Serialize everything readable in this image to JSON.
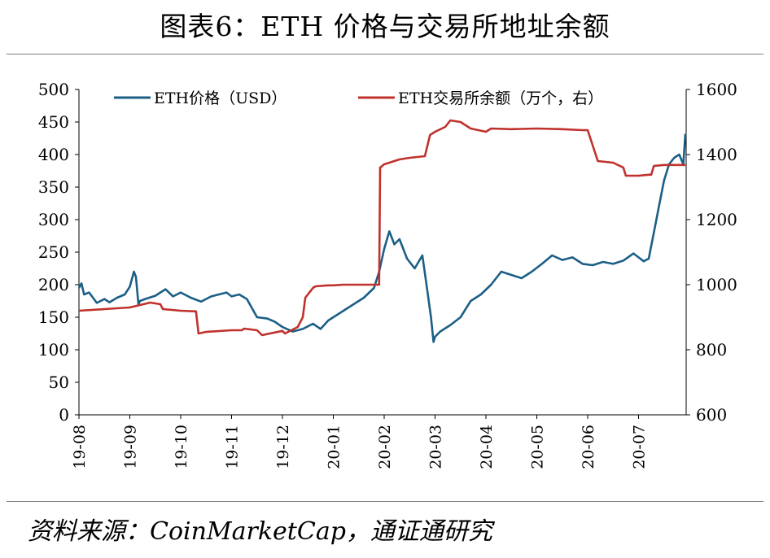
{
  "title": "图表6：ETH 价格与交易所地址余额",
  "source": "资料来源：CoinMarketCap，通证通研究",
  "chart_data": {
    "type": "line",
    "xlabels": [
      "19-08",
      "19-09",
      "19-10",
      "19-11",
      "19-12",
      "20-01",
      "20-02",
      "20-03",
      "20-04",
      "20-05",
      "20-06",
      "20-07"
    ],
    "y_left": {
      "min": 0,
      "max": 500,
      "ticks": [
        0,
        50,
        100,
        150,
        200,
        250,
        300,
        350,
        400,
        450,
        500
      ]
    },
    "y_right": {
      "min": 600,
      "max": 1600,
      "ticks": [
        600,
        800,
        1000,
        1200,
        1400,
        1600
      ]
    },
    "legend": {
      "eth_price": "ETH价格（USD）",
      "exchange_balance": "ETH交易所余额（万个，右）"
    },
    "colors": {
      "eth_price": "#1c5f86",
      "exchange_balance": "#c0312c"
    },
    "series": [
      {
        "name": "ETH价格（USD）",
        "axis": "left",
        "t": [
          0,
          0.05,
          0.1,
          0.2,
          0.35,
          0.5,
          0.6,
          0.75,
          0.9,
          1.0,
          1.08,
          1.12,
          1.17,
          1.2,
          1.3,
          1.5,
          1.7,
          1.85,
          2.0,
          2.2,
          2.4,
          2.6,
          2.75,
          2.9,
          3.0,
          3.15,
          3.3,
          3.5,
          3.7,
          3.85,
          4.0,
          4.2,
          4.4,
          4.6,
          4.75,
          4.9,
          5.0,
          5.2,
          5.4,
          5.6,
          5.8,
          5.9,
          6.0,
          6.1,
          6.2,
          6.3,
          6.45,
          6.6,
          6.75,
          6.85,
          6.92,
          6.97,
          7.0,
          7.1,
          7.3,
          7.5,
          7.7,
          7.9,
          8.1,
          8.3,
          8.5,
          8.7,
          8.9,
          9.1,
          9.3,
          9.5,
          9.7,
          9.9,
          10.1,
          10.3,
          10.5,
          10.7,
          10.9,
          11.0,
          11.1,
          11.2,
          11.3,
          11.4,
          11.5,
          11.6,
          11.7,
          11.8,
          11.88,
          11.92
        ],
        "values": [
          195,
          202,
          185,
          188,
          172,
          178,
          173,
          180,
          185,
          197,
          220,
          212,
          170,
          175,
          178,
          183,
          193,
          182,
          188,
          180,
          174,
          182,
          185,
          188,
          182,
          185,
          178,
          150,
          148,
          143,
          135,
          128,
          132,
          140,
          132,
          145,
          150,
          160,
          170,
          180,
          195,
          220,
          255,
          282,
          262,
          270,
          240,
          225,
          245,
          190,
          150,
          112,
          120,
          128,
          138,
          150,
          175,
          185,
          200,
          220,
          215,
          210,
          220,
          232,
          245,
          238,
          242,
          232,
          230,
          235,
          232,
          237,
          248,
          242,
          236,
          240,
          280,
          320,
          360,
          385,
          395,
          400,
          385,
          432
        ]
      },
      {
        "name": "ETH交易所余额（万个，右）",
        "axis": "right",
        "t": [
          0,
          0.5,
          1.0,
          1.4,
          1.6,
          1.65,
          2.0,
          2.3,
          2.35,
          2.5,
          3.0,
          3.2,
          3.25,
          3.5,
          3.6,
          4.0,
          4.05,
          4.3,
          4.4,
          4.45,
          4.6,
          4.65,
          4.9,
          5.0,
          5.2,
          5.5,
          5.8,
          5.9,
          5.92,
          6.0,
          6.1,
          6.2,
          6.3,
          6.5,
          6.8,
          6.9,
          7.0,
          7.2,
          7.3,
          7.5,
          7.6,
          7.7,
          8.0,
          8.1,
          8.5,
          9.0,
          9.5,
          9.9,
          10.0,
          10.2,
          10.5,
          10.7,
          10.75,
          11.0,
          11.2,
          11.25,
          11.3,
          11.5,
          11.92
        ],
        "values": [
          920,
          925,
          930,
          945,
          940,
          925,
          920,
          918,
          850,
          855,
          860,
          860,
          865,
          860,
          845,
          858,
          850,
          870,
          900,
          960,
          990,
          995,
          998,
          998,
          1000,
          1000,
          1000,
          1000,
          1360,
          1370,
          1375,
          1380,
          1385,
          1390,
          1395,
          1460,
          1470,
          1485,
          1505,
          1500,
          1490,
          1480,
          1470,
          1480,
          1478,
          1480,
          1478,
          1475,
          1475,
          1380,
          1375,
          1360,
          1335,
          1335,
          1338,
          1338,
          1365,
          1368,
          1368
        ]
      }
    ]
  }
}
